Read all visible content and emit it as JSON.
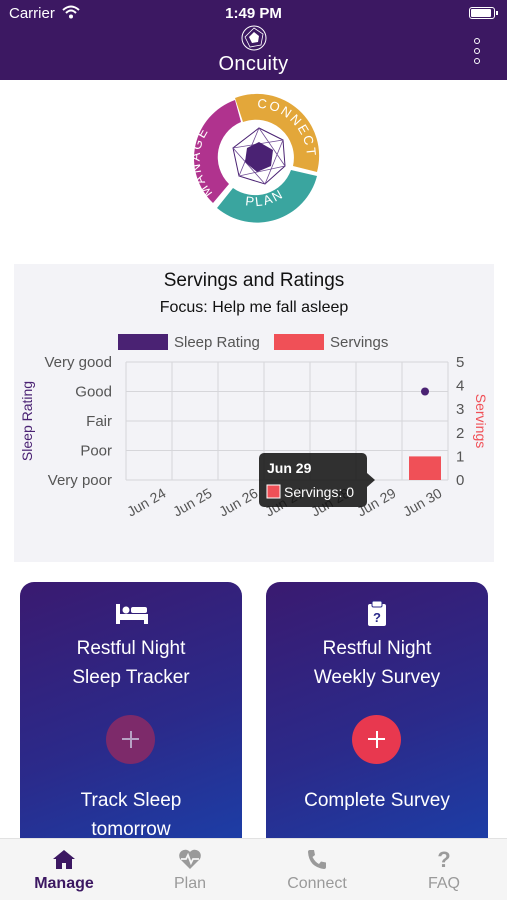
{
  "status_bar": {
    "carrier": "Carrier",
    "time": "1:49 PM"
  },
  "header": {
    "app_name": "Oncuity"
  },
  "logo": {
    "manage": "MANAGE",
    "connect": "CONNECT",
    "plan": "PLAN"
  },
  "chart": {
    "title": "Servings and Ratings",
    "subtitle": "Focus: Help me fall asleep",
    "tooltip": {
      "date": "Jun 29",
      "text": "Servings: 0"
    }
  },
  "chart_data": {
    "type": "bar",
    "title": "Servings and Ratings",
    "subtitle": "Focus: Help me fall asleep",
    "categories": [
      "Jun 24",
      "Jun 25",
      "Jun 26",
      "Jun 27",
      "Jun 28",
      "Jun 29",
      "Jun 30"
    ],
    "series": [
      {
        "name": "Sleep Rating",
        "kind": "scatter",
        "color": "#4a2273",
        "axis": "left",
        "values": [
          null,
          null,
          null,
          null,
          null,
          null,
          4
        ]
      },
      {
        "name": "Servings",
        "kind": "bar",
        "color": "#f05057",
        "axis": "right",
        "values": [
          0,
          0,
          0,
          0,
          0,
          0,
          1
        ]
      }
    ],
    "ylabel": "Sleep Rating",
    "ylabel_right": "Servings",
    "y_left_ticks": [
      "Very poor",
      "Poor",
      "Fair",
      "Good",
      "Very good"
    ],
    "y_right_ticks": [
      "0",
      "1",
      "2",
      "3",
      "4",
      "5"
    ],
    "ylim_left": [
      1,
      5
    ],
    "ylim_right": [
      0,
      5
    ],
    "grid": true,
    "legend": "top"
  },
  "cards": [
    {
      "title_line1": "Restful Night",
      "title_line2": "Sleep Tracker",
      "action_line1": "Track Sleep",
      "action_line2": "tomorrow",
      "icon": "bed-icon"
    },
    {
      "title_line1": "Restful Night",
      "title_line2": "Weekly Survey",
      "action_line1": "Complete Survey",
      "action_line2": "",
      "icon": "clipboard-question-icon"
    }
  ],
  "tabs": [
    {
      "label": "Manage",
      "icon": "home-icon",
      "active": true
    },
    {
      "label": "Plan",
      "icon": "heart-pulse-icon",
      "active": false
    },
    {
      "label": "Connect",
      "icon": "phone-icon",
      "active": false
    },
    {
      "label": "FAQ",
      "icon": "question-icon",
      "active": false
    }
  ],
  "colors": {
    "header_bg": "#3c1862",
    "manage": "#b0338e",
    "connect": "#e3a73a",
    "plan": "#3aa59f",
    "sleep_rating": "#4a2273",
    "servings": "#f05057",
    "active_tab": "#3c1862"
  }
}
